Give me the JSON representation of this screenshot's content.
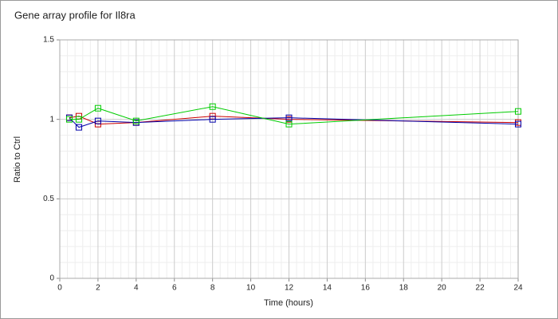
{
  "chart_data": {
    "type": "line",
    "title": "Gene array profile for Il8ra",
    "x_label": "Time (hours)",
    "y_label": "Ratio to Ctrl",
    "x": [
      0.5,
      1,
      2,
      4,
      8,
      12,
      24
    ],
    "series": [
      {
        "color": "#cc0000",
        "values": [
          1.01,
          1.02,
          0.97,
          0.98,
          1.02,
          1.0,
          0.98
        ]
      },
      {
        "color": "#0000aa",
        "values": [
          1.01,
          0.95,
          0.99,
          0.98,
          1.0,
          1.01,
          0.97
        ]
      },
      {
        "color": "#00cc00",
        "values": [
          1.0,
          1.0,
          1.07,
          0.99,
          1.08,
          0.97,
          1.05
        ]
      }
    ],
    "xlim": [
      0,
      24
    ],
    "xticks": [
      0,
      2,
      4,
      6,
      8,
      10,
      12,
      14,
      16,
      18,
      20,
      22,
      24
    ],
    "ylim": [
      0,
      1.5
    ],
    "yticks": [
      0,
      0.5,
      1,
      1.5
    ],
    "grid": true
  }
}
